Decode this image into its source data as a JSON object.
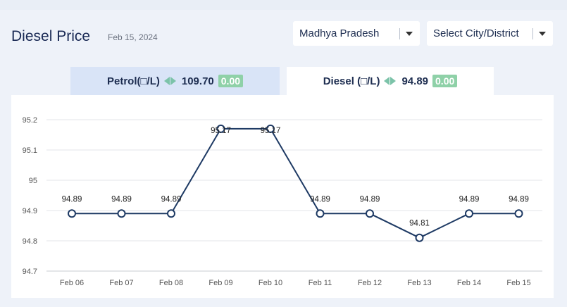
{
  "header": {
    "title": "Diesel Price",
    "date": "Feb 15, 2024"
  },
  "filters": {
    "state": "Madhya Pradesh",
    "city": "Select City/District"
  },
  "tabs": [
    {
      "name": "Petrol(□/L)",
      "price": "109.70",
      "change": "0.00",
      "active": false
    },
    {
      "name": "Diesel (□/L)",
      "price": "94.89",
      "change": "0.00",
      "active": true
    }
  ],
  "colors": {
    "line": "#1e3a64",
    "badge": "#8fd1a8",
    "arrow": "#7cc3a9"
  },
  "chart_data": {
    "type": "line",
    "title": "",
    "xlabel": "",
    "ylabel": "",
    "categories": [
      "Feb 06",
      "Feb 07",
      "Feb 08",
      "Feb 09",
      "Feb 10",
      "Feb 11",
      "Feb 12",
      "Feb 13",
      "Feb 14",
      "Feb 15"
    ],
    "series": [
      {
        "values": [
          94.89,
          94.89,
          94.89,
          95.17,
          95.17,
          94.89,
          94.89,
          94.81,
          94.89,
          94.89
        ]
      }
    ],
    "data_labels": [
      "94.89",
      "94.89",
      "94.89",
      "95.17",
      "95.17",
      "94.89",
      "94.89",
      "94.81",
      "94.89",
      "94.89"
    ],
    "yticks": [
      94.7,
      94.8,
      94.9,
      95,
      95.1,
      95.2
    ],
    "ytick_labels": [
      "94.7",
      "94.8",
      "94.9",
      "95",
      "95.1",
      "95.2"
    ],
    "ylim": [
      94.7,
      95.2
    ],
    "grid": true,
    "legend": "none"
  }
}
